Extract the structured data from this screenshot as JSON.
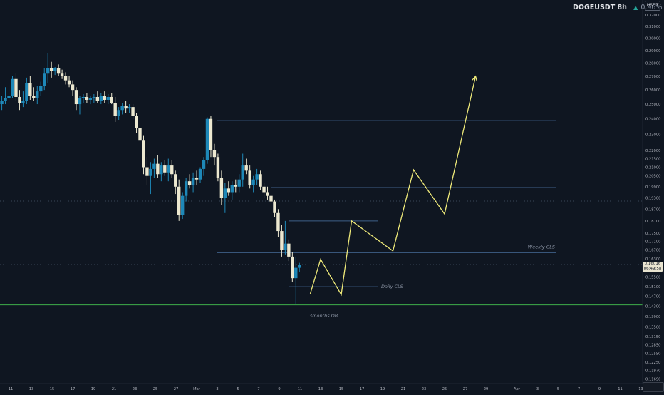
{
  "header": {
    "symbol": "DOGEUSDT",
    "interval": "8h",
    "change_arrow": "▲",
    "change": "0.96%",
    "currency": "USDT"
  },
  "colors": {
    "background": "#0f1621",
    "candle_up": "#1e88b8",
    "candle_down": "#ece8d0",
    "projection": "#f0eb7a",
    "level_line": "#3f5f88",
    "ob_line": "#3fae4a",
    "text_muted": "#8a93a3"
  },
  "price_tag": {
    "price": "0.16016",
    "countdown": "06:49:58"
  },
  "annotations": {
    "weekly": "Weekly CLS",
    "daily": "Daily CLS",
    "three_months": "3months OB"
  },
  "chart_data": {
    "type": "candlestick",
    "interval": "8h",
    "y_axis_ticks": [
      "0.32000",
      "0.31000",
      "0.30000",
      "0.29000",
      "0.28000",
      "0.27000",
      "0.26000",
      "0.25000",
      "0.24000",
      "0.23000",
      "0.22000",
      "0.21500",
      "0.21000",
      "0.20500",
      "0.19900",
      "0.19300",
      "0.18700",
      "0.18100",
      "0.17500",
      "0.17100",
      "0.16700",
      "0.16300",
      "0.15900",
      "0.15500",
      "0.15100",
      "0.14700",
      "0.14300",
      "0.13900",
      "0.13500",
      "0.13150",
      "0.12850",
      "0.12550",
      "0.12250",
      "0.11970",
      "0.11690"
    ],
    "x_axis_ticks": [
      "11",
      "13",
      "15",
      "17",
      "19",
      "21",
      "23",
      "25",
      "27",
      "Mar",
      "3",
      "5",
      "7",
      "9",
      "11",
      "13",
      "15",
      "17",
      "19",
      "21",
      "23",
      "25",
      "27",
      "29",
      "Apr",
      "3",
      "5",
      "7",
      "9",
      "11",
      "13"
    ],
    "levels": [
      {
        "price": 0.239,
        "label": ""
      },
      {
        "price": 0.1985,
        "label": ""
      },
      {
        "price": 0.181,
        "label": ""
      },
      {
        "price": 0.1658,
        "label": "Weekly CLS"
      },
      {
        "price": 0.1509,
        "label": "Daily CLS"
      },
      {
        "price": 0.1435,
        "label": "3months OB"
      }
    ],
    "candles": [
      {
        "o": 0.248,
        "h": 0.256,
        "l": 0.244,
        "c": 0.25
      },
      {
        "o": 0.25,
        "h": 0.256,
        "l": 0.246,
        "c": 0.252
      },
      {
        "o": 0.252,
        "h": 0.262,
        "l": 0.25,
        "c": 0.254
      },
      {
        "o": 0.254,
        "h": 0.264,
        "l": 0.251,
        "c": 0.256
      },
      {
        "o": 0.256,
        "h": 0.27,
        "l": 0.254,
        "c": 0.268
      },
      {
        "o": 0.268,
        "h": 0.272,
        "l": 0.252,
        "c": 0.255
      },
      {
        "o": 0.255,
        "h": 0.26,
        "l": 0.246,
        "c": 0.251
      },
      {
        "o": 0.251,
        "h": 0.259,
        "l": 0.248,
        "c": 0.252
      },
      {
        "o": 0.252,
        "h": 0.269,
        "l": 0.25,
        "c": 0.265
      },
      {
        "o": 0.265,
        "h": 0.27,
        "l": 0.253,
        "c": 0.256
      },
      {
        "o": 0.256,
        "h": 0.262,
        "l": 0.252,
        "c": 0.254
      },
      {
        "o": 0.254,
        "h": 0.263,
        "l": 0.25,
        "c": 0.259
      },
      {
        "o": 0.259,
        "h": 0.266,
        "l": 0.256,
        "c": 0.263
      },
      {
        "o": 0.263,
        "h": 0.276,
        "l": 0.26,
        "c": 0.272
      },
      {
        "o": 0.272,
        "h": 0.288,
        "l": 0.265,
        "c": 0.276
      },
      {
        "o": 0.276,
        "h": 0.281,
        "l": 0.269,
        "c": 0.274
      },
      {
        "o": 0.274,
        "h": 0.277,
        "l": 0.271,
        "c": 0.276
      },
      {
        "o": 0.276,
        "h": 0.279,
        "l": 0.27,
        "c": 0.272
      },
      {
        "o": 0.272,
        "h": 0.275,
        "l": 0.268,
        "c": 0.27
      },
      {
        "o": 0.27,
        "h": 0.273,
        "l": 0.264,
        "c": 0.267
      },
      {
        "o": 0.267,
        "h": 0.27,
        "l": 0.262,
        "c": 0.264
      },
      {
        "o": 0.264,
        "h": 0.267,
        "l": 0.256,
        "c": 0.26
      },
      {
        "o": 0.26,
        "h": 0.262,
        "l": 0.246,
        "c": 0.25
      },
      {
        "o": 0.25,
        "h": 0.256,
        "l": 0.243,
        "c": 0.254
      },
      {
        "o": 0.254,
        "h": 0.257,
        "l": 0.251,
        "c": 0.255
      },
      {
        "o": 0.255,
        "h": 0.258,
        "l": 0.251,
        "c": 0.253
      },
      {
        "o": 0.253,
        "h": 0.256,
        "l": 0.25,
        "c": 0.254
      },
      {
        "o": 0.254,
        "h": 0.257,
        "l": 0.251,
        "c": 0.255
      },
      {
        "o": 0.255,
        "h": 0.259,
        "l": 0.251,
        "c": 0.252
      },
      {
        "o": 0.252,
        "h": 0.258,
        "l": 0.25,
        "c": 0.256
      },
      {
        "o": 0.256,
        "h": 0.259,
        "l": 0.251,
        "c": 0.253
      },
      {
        "o": 0.253,
        "h": 0.257,
        "l": 0.25,
        "c": 0.255
      },
      {
        "o": 0.255,
        "h": 0.258,
        "l": 0.25,
        "c": 0.251
      },
      {
        "o": 0.251,
        "h": 0.255,
        "l": 0.238,
        "c": 0.242
      },
      {
        "o": 0.242,
        "h": 0.248,
        "l": 0.239,
        "c": 0.246
      },
      {
        "o": 0.246,
        "h": 0.251,
        "l": 0.243,
        "c": 0.249
      },
      {
        "o": 0.249,
        "h": 0.252,
        "l": 0.244,
        "c": 0.247
      },
      {
        "o": 0.247,
        "h": 0.25,
        "l": 0.244,
        "c": 0.248
      },
      {
        "o": 0.248,
        "h": 0.25,
        "l": 0.24,
        "c": 0.242
      },
      {
        "o": 0.242,
        "h": 0.244,
        "l": 0.231,
        "c": 0.234
      },
      {
        "o": 0.234,
        "h": 0.237,
        "l": 0.222,
        "c": 0.226
      },
      {
        "o": 0.226,
        "h": 0.229,
        "l": 0.206,
        "c": 0.21
      },
      {
        "o": 0.21,
        "h": 0.216,
        "l": 0.2,
        "c": 0.205
      },
      {
        "o": 0.205,
        "h": 0.213,
        "l": 0.195,
        "c": 0.209
      },
      {
        "o": 0.209,
        "h": 0.215,
        "l": 0.204,
        "c": 0.212
      },
      {
        "o": 0.212,
        "h": 0.217,
        "l": 0.204,
        "c": 0.206
      },
      {
        "o": 0.206,
        "h": 0.213,
        "l": 0.202,
        "c": 0.211
      },
      {
        "o": 0.211,
        "h": 0.214,
        "l": 0.205,
        "c": 0.207
      },
      {
        "o": 0.207,
        "h": 0.215,
        "l": 0.202,
        "c": 0.211
      },
      {
        "o": 0.211,
        "h": 0.214,
        "l": 0.204,
        "c": 0.206
      },
      {
        "o": 0.206,
        "h": 0.208,
        "l": 0.195,
        "c": 0.199
      },
      {
        "o": 0.199,
        "h": 0.203,
        "l": 0.181,
        "c": 0.184
      },
      {
        "o": 0.184,
        "h": 0.196,
        "l": 0.182,
        "c": 0.194
      },
      {
        "o": 0.194,
        "h": 0.204,
        "l": 0.191,
        "c": 0.202
      },
      {
        "o": 0.202,
        "h": 0.206,
        "l": 0.198,
        "c": 0.2
      },
      {
        "o": 0.2,
        "h": 0.207,
        "l": 0.196,
        "c": 0.204
      },
      {
        "o": 0.204,
        "h": 0.208,
        "l": 0.2,
        "c": 0.203
      },
      {
        "o": 0.203,
        "h": 0.21,
        "l": 0.201,
        "c": 0.209
      },
      {
        "o": 0.209,
        "h": 0.216,
        "l": 0.205,
        "c": 0.214
      },
      {
        "o": 0.214,
        "h": 0.241,
        "l": 0.212,
        "c": 0.24
      },
      {
        "o": 0.24,
        "h": 0.242,
        "l": 0.216,
        "c": 0.22
      },
      {
        "o": 0.22,
        "h": 0.224,
        "l": 0.211,
        "c": 0.216
      },
      {
        "o": 0.216,
        "h": 0.218,
        "l": 0.202,
        "c": 0.204
      },
      {
        "o": 0.204,
        "h": 0.208,
        "l": 0.189,
        "c": 0.193
      },
      {
        "o": 0.193,
        "h": 0.201,
        "l": 0.185,
        "c": 0.198
      },
      {
        "o": 0.198,
        "h": 0.202,
        "l": 0.194,
        "c": 0.196
      },
      {
        "o": 0.196,
        "h": 0.202,
        "l": 0.192,
        "c": 0.2
      },
      {
        "o": 0.2,
        "h": 0.203,
        "l": 0.196,
        "c": 0.199
      },
      {
        "o": 0.199,
        "h": 0.206,
        "l": 0.196,
        "c": 0.203
      },
      {
        "o": 0.203,
        "h": 0.218,
        "l": 0.199,
        "c": 0.211
      },
      {
        "o": 0.211,
        "h": 0.215,
        "l": 0.206,
        "c": 0.208
      },
      {
        "o": 0.208,
        "h": 0.211,
        "l": 0.198,
        "c": 0.2
      },
      {
        "o": 0.2,
        "h": 0.205,
        "l": 0.196,
        "c": 0.203
      },
      {
        "o": 0.203,
        "h": 0.209,
        "l": 0.2,
        "c": 0.206
      },
      {
        "o": 0.206,
        "h": 0.208,
        "l": 0.197,
        "c": 0.199
      },
      {
        "o": 0.199,
        "h": 0.201,
        "l": 0.193,
        "c": 0.196
      },
      {
        "o": 0.196,
        "h": 0.199,
        "l": 0.192,
        "c": 0.194
      },
      {
        "o": 0.194,
        "h": 0.196,
        "l": 0.189,
        "c": 0.191
      },
      {
        "o": 0.191,
        "h": 0.192,
        "l": 0.183,
        "c": 0.185
      },
      {
        "o": 0.185,
        "h": 0.187,
        "l": 0.173,
        "c": 0.176
      },
      {
        "o": 0.176,
        "h": 0.179,
        "l": 0.164,
        "c": 0.167
      },
      {
        "o": 0.167,
        "h": 0.181,
        "l": 0.165,
        "c": 0.17
      },
      {
        "o": 0.17,
        "h": 0.172,
        "l": 0.162,
        "c": 0.164
      },
      {
        "o": 0.164,
        "h": 0.166,
        "l": 0.153,
        "c": 0.1545
      },
      {
        "o": 0.1545,
        "h": 0.164,
        "l": 0.1437,
        "c": 0.159
      },
      {
        "o": 0.159,
        "h": 0.1612,
        "l": 0.157,
        "c": 0.1602
      }
    ],
    "projection_path": [
      {
        "x": "Mar 12",
        "y": 0.148
      },
      {
        "x": "Mar 13",
        "y": 0.1628
      },
      {
        "x": "Mar 15",
        "y": 0.1476
      },
      {
        "x": "Mar 16",
        "y": 0.181
      },
      {
        "x": "Mar 20",
        "y": 0.1666
      },
      {
        "x": "Mar 22",
        "y": 0.2085
      },
      {
        "x": "Mar 25",
        "y": 0.1845
      },
      {
        "x": "Mar 28",
        "y": 0.27
      }
    ]
  }
}
